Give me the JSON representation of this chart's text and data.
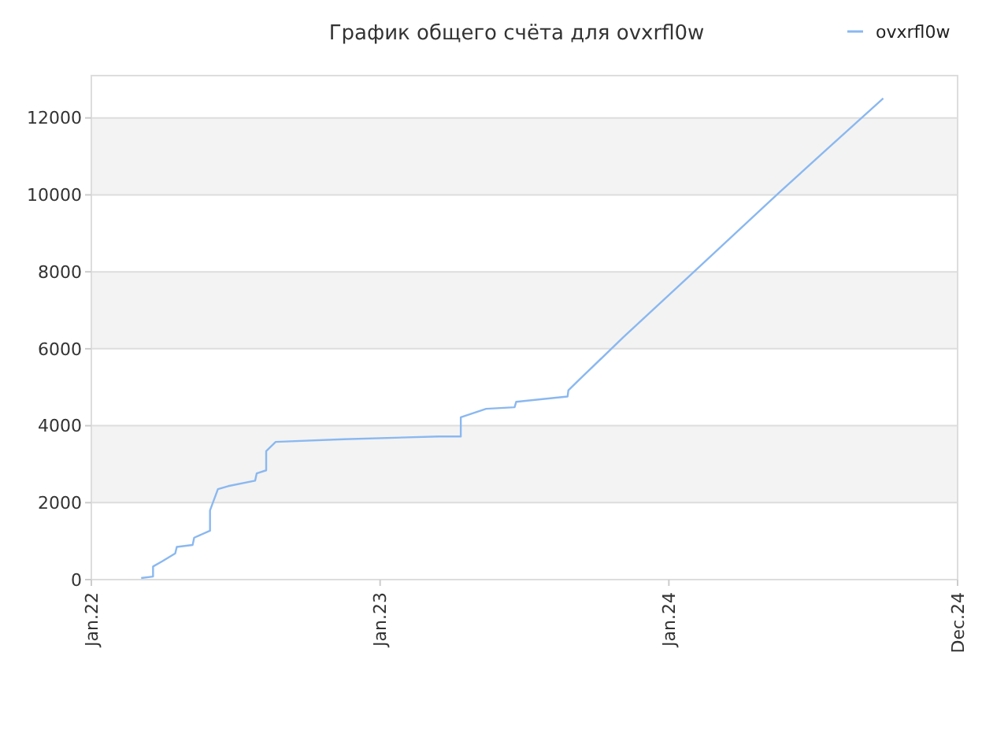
{
  "chart_data": {
    "type": "line",
    "title": "График общего счёта для ovxrfl0w",
    "x": [
      "2022-03-05",
      "2022-03-20",
      "2022-03-20",
      "2022-04-01",
      "2022-04-17",
      "2022-04-19",
      "2022-05-09",
      "2022-05-11",
      "2022-05-31",
      "2022-05-31",
      "2022-06-10",
      "2022-06-23",
      "2022-07-27",
      "2022-07-29",
      "2022-08-10",
      "2022-08-10",
      "2022-08-22",
      "2022-11-16",
      "2023-03-16",
      "2023-04-13",
      "2023-04-13",
      "2023-05-15",
      "2023-06-20",
      "2023-06-22",
      "2023-08-26",
      "2023-08-27",
      "2023-09-11",
      "2023-11-04",
      "2024-01-29",
      "2024-05-21",
      "2024-07-20",
      "2024-09-28"
    ],
    "series": [
      {
        "name": "ovxrfl0w",
        "color": "#8ab8f0",
        "values": [
          40,
          80,
          340,
          480,
          680,
          850,
          900,
          1090,
          1270,
          1800,
          2350,
          2430,
          2570,
          2760,
          2840,
          3340,
          3580,
          3650,
          3720,
          3720,
          4220,
          4440,
          4480,
          4620,
          4760,
          4920,
          5220,
          6290,
          7930,
          10090,
          11210,
          12510
        ]
      }
    ],
    "xlim": [
      "2022-01-01",
      "2024-12-31"
    ],
    "xticks": [
      {
        "value": "2022-01-01",
        "label": "Jan.22"
      },
      {
        "value": "2023-01-01",
        "label": "Jan.23"
      },
      {
        "value": "2024-01-01",
        "label": "Jan.24"
      },
      {
        "value": "2024-12-31",
        "label": "Dec.24"
      }
    ],
    "ylim": [
      0,
      13100
    ],
    "yticks": [
      0,
      2000,
      4000,
      6000,
      8000,
      10000,
      12000
    ],
    "grid": "y",
    "legend": "top right",
    "marker": "none",
    "line_style": "solid"
  }
}
